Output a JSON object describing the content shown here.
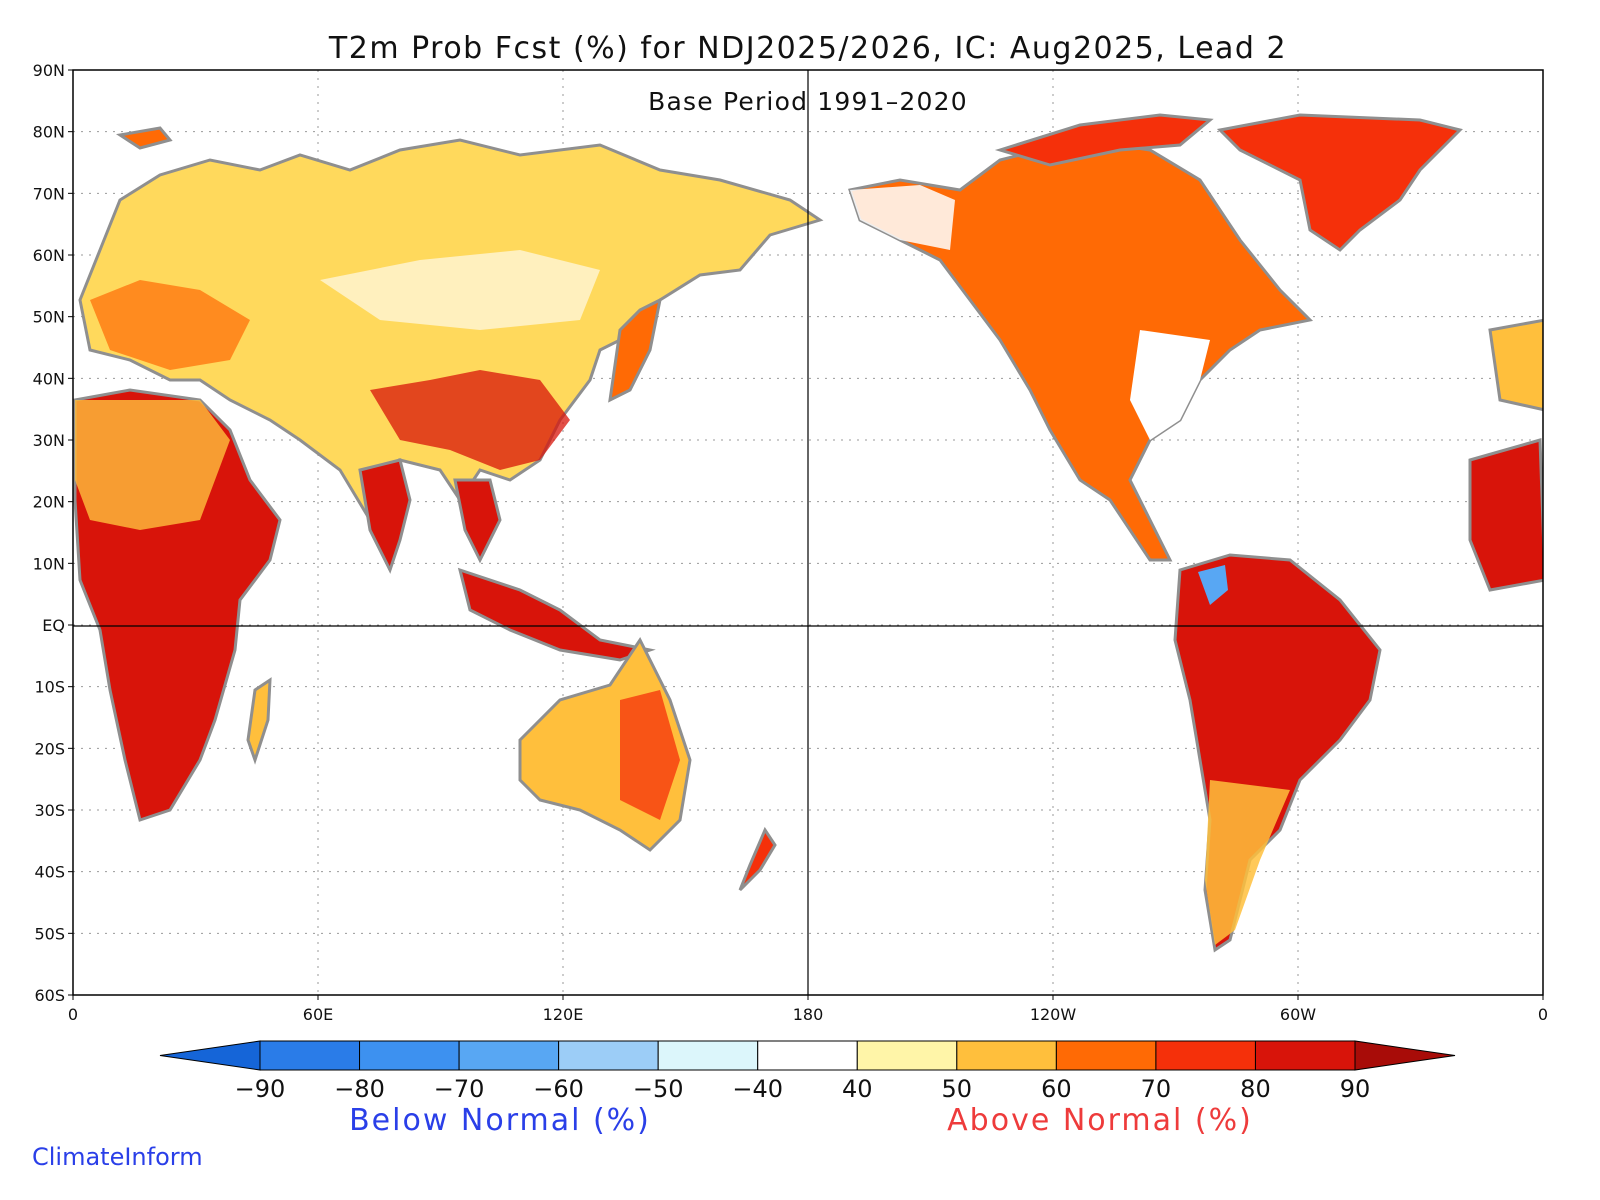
{
  "title": "T2m Prob Fcst (%) for NDJ2025/2026, IC: Aug2025, Lead 2",
  "subtitle": "Base Period 1991–2020",
  "lat_labels": [
    "90N",
    "80N",
    "70N",
    "60N",
    "50N",
    "40N",
    "30N",
    "20N",
    "10N",
    "EQ",
    "10S",
    "20S",
    "30S",
    "40S",
    "50S",
    "60S"
  ],
  "lon_labels": [
    "0",
    "60E",
    "120E",
    "180",
    "120W",
    "60W",
    "0"
  ],
  "colorbar": {
    "tick_labels": [
      "−90",
      "−80",
      "−70",
      "−60",
      "−50",
      "−40",
      "40",
      "50",
      "60",
      "70",
      "80",
      "90"
    ],
    "colors": [
      "#1565d8",
      "#2a7ce8",
      "#3d91f0",
      "#58a7f3",
      "#9ccdf7",
      "#dcf6fb",
      "#ffffff",
      "#fff5a8",
      "#ffbf3c",
      "#ff6a05",
      "#f5300a",
      "#d8140a",
      "#a80c08"
    ],
    "below_label": "Below Normal (%)",
    "above_label": "Above Normal (%)"
  },
  "credit": "ClimateInform",
  "icons": {
    "map": "world-map-icon"
  }
}
